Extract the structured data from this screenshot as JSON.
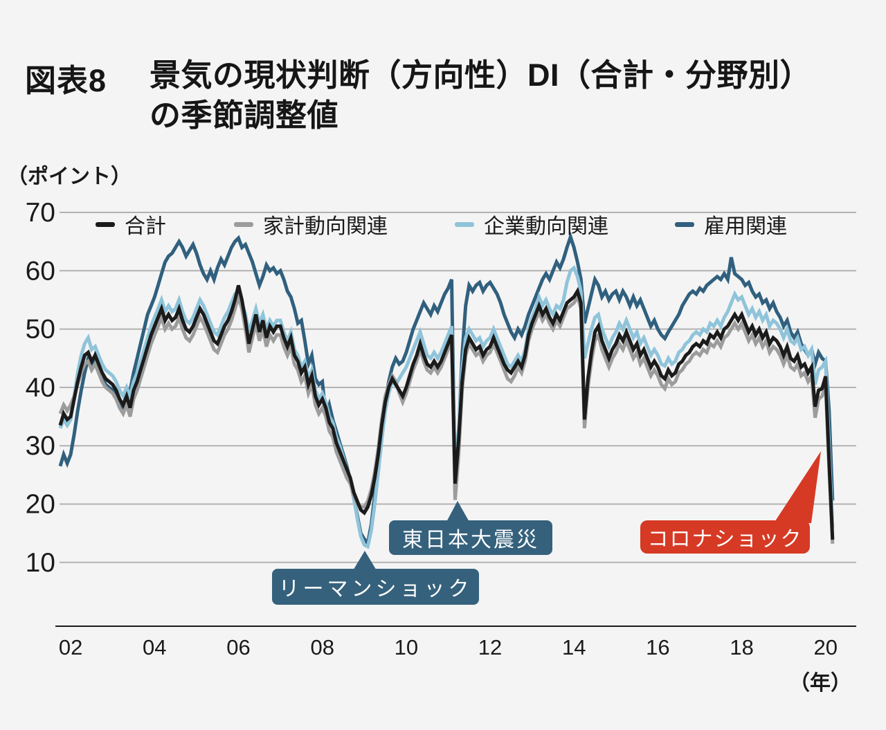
{
  "header": {
    "figure_number": "図表8",
    "title_line1": "景気の現状判断（方向性）DI（合計・分野別）",
    "title_line2": "の季節調整値"
  },
  "axes": {
    "y_unit": "（ポイント）",
    "x_unit": "（年）"
  },
  "chart_data": {
    "type": "line",
    "title": "景気の現状判断（方向性）DI（合計・分野別）の季節調整値",
    "ylabel": "（ポイント）",
    "xlabel": "（年）",
    "frequency": "monthly",
    "x_start": "2001-10",
    "x_end": "2020-03",
    "ylim": [
      0,
      70
    ],
    "grid": true,
    "legend_position": "top",
    "y_ticks": [
      70,
      60,
      50,
      40,
      30,
      20,
      10
    ],
    "x_ticks": [
      "02",
      "04",
      "06",
      "08",
      "10",
      "12",
      "14",
      "16",
      "18",
      "20"
    ],
    "style": {
      "background": "#f4f4f5",
      "grid_color": "#b2b2b2",
      "axis_color": "#1a1a1a",
      "callout_blue": "#35617c",
      "callout_red": "#d63a25"
    },
    "series": [
      {
        "name": "合計",
        "color": "#1b1b1b",
        "values": [
          33.5,
          35.5,
          34.5,
          35.0,
          38.0,
          41.0,
          43.5,
          45.5,
          46.0,
          44.5,
          45.5,
          44.0,
          42.5,
          41.5,
          41.0,
          40.5,
          39.5,
          38.0,
          37.0,
          38.5,
          36.5,
          39.5,
          41.0,
          43.0,
          45.0,
          47.0,
          49.0,
          50.5,
          52.0,
          53.5,
          51.5,
          52.5,
          51.5,
          52.0,
          53.5,
          51.5,
          50.0,
          49.5,
          50.5,
          52.0,
          53.5,
          52.5,
          51.0,
          49.5,
          48.0,
          47.5,
          49.0,
          50.5,
          51.5,
          53.0,
          55.0,
          57.5,
          55.0,
          51.5,
          47.5,
          50.0,
          52.5,
          49.5,
          51.5,
          48.5,
          50.5,
          49.5,
          50.5,
          50.5,
          48.5,
          47.0,
          48.5,
          45.5,
          44.5,
          42.5,
          43.5,
          40.5,
          42.0,
          38.5,
          37.0,
          38.0,
          36.5,
          34.0,
          33.0,
          30.5,
          29.0,
          27.5,
          26.0,
          24.5,
          22.0,
          20.5,
          19.0,
          18.5,
          19.5,
          21.5,
          24.5,
          28.5,
          33.5,
          37.5,
          40.0,
          41.5,
          40.5,
          39.5,
          38.5,
          40.0,
          42.0,
          44.0,
          45.5,
          47.5,
          45.5,
          44.0,
          43.5,
          44.5,
          43.5,
          44.5,
          46.0,
          47.5,
          49.0,
          23.5,
          31.0,
          41.0,
          46.5,
          48.5,
          47.5,
          46.5,
          47.0,
          45.5,
          46.5,
          47.0,
          48.5,
          47.0,
          45.5,
          44.0,
          43.0,
          42.5,
          43.5,
          44.5,
          43.5,
          45.5,
          49.0,
          51.0,
          52.5,
          54.0,
          52.5,
          53.5,
          52.0,
          51.0,
          52.5,
          51.5,
          53.0,
          54.5,
          55.0,
          55.5,
          56.5,
          54.5,
          34.5,
          41.5,
          46.0,
          49.5,
          50.5,
          48.0,
          46.5,
          45.0,
          46.5,
          47.5,
          49.0,
          48.0,
          49.5,
          48.0,
          46.5,
          47.5,
          45.5,
          46.5,
          45.0,
          43.5,
          44.5,
          43.5,
          42.0,
          41.5,
          43.0,
          42.0,
          42.5,
          44.0,
          44.5,
          45.5,
          46.0,
          47.0,
          47.5,
          47.0,
          48.0,
          47.5,
          49.0,
          48.5,
          49.5,
          48.5,
          50.0,
          50.5,
          51.5,
          52.5,
          51.5,
          52.5,
          51.0,
          49.5,
          50.5,
          49.0,
          50.0,
          48.5,
          49.5,
          47.5,
          48.5,
          48.0,
          47.0,
          45.5,
          47.0,
          45.0,
          44.5,
          45.5,
          43.5,
          44.0,
          42.5,
          43.5,
          36.7,
          39.5,
          39.8,
          41.9,
          27.4,
          13.9
        ]
      },
      {
        "name": "家計動向関連",
        "color": "#9c9c9c",
        "values": [
          35.5,
          37.0,
          36.0,
          37.0,
          38.5,
          40.5,
          42.5,
          44.0,
          44.5,
          43.0,
          44.0,
          42.5,
          41.0,
          40.0,
          39.5,
          39.0,
          38.0,
          36.5,
          35.5,
          37.0,
          35.0,
          38.0,
          39.5,
          41.5,
          43.5,
          45.5,
          47.5,
          49.0,
          50.5,
          52.0,
          50.0,
          51.0,
          50.0,
          50.5,
          52.0,
          50.0,
          48.5,
          48.0,
          49.0,
          50.5,
          52.0,
          51.0,
          49.5,
          48.0,
          46.5,
          46.0,
          47.5,
          49.0,
          50.0,
          51.5,
          53.5,
          55.5,
          53.5,
          50.0,
          46.0,
          48.5,
          51.0,
          48.0,
          50.0,
          47.0,
          49.0,
          48.0,
          49.0,
          49.0,
          47.0,
          45.5,
          47.0,
          44.0,
          43.0,
          41.0,
          42.0,
          39.0,
          40.5,
          37.0,
          35.5,
          36.5,
          35.0,
          32.5,
          31.5,
          29.0,
          27.5,
          26.0,
          24.5,
          23.5,
          21.5,
          20.0,
          19.5,
          19.5,
          20.5,
          22.5,
          25.5,
          29.5,
          34.5,
          38.5,
          40.5,
          42.0,
          41.0,
          39.0,
          37.5,
          39.0,
          41.0,
          43.0,
          44.5,
          46.5,
          44.5,
          43.0,
          42.5,
          43.5,
          42.5,
          43.5,
          45.0,
          46.5,
          48.0,
          20.7,
          28.5,
          39.5,
          45.5,
          47.5,
          46.5,
          45.5,
          46.0,
          44.5,
          45.5,
          46.0,
          47.5,
          46.0,
          44.5,
          43.0,
          41.5,
          41.0,
          42.0,
          43.5,
          42.5,
          44.5,
          48.0,
          50.0,
          51.5,
          53.0,
          51.5,
          52.5,
          51.0,
          50.0,
          51.5,
          50.5,
          52.0,
          53.5,
          54.0,
          54.5,
          55.5,
          53.5,
          33.0,
          40.0,
          44.5,
          48.0,
          49.0,
          46.5,
          45.0,
          43.5,
          45.0,
          46.0,
          47.5,
          46.5,
          48.0,
          46.5,
          45.0,
          46.0,
          44.0,
          45.0,
          43.5,
          42.0,
          43.0,
          42.0,
          40.5,
          39.8,
          41.5,
          40.5,
          41.0,
          42.5,
          43.0,
          44.0,
          44.5,
          45.5,
          46.0,
          45.5,
          46.5,
          46.0,
          47.5,
          47.0,
          48.0,
          47.0,
          48.5,
          49.0,
          50.0,
          51.0,
          50.0,
          51.0,
          49.5,
          48.0,
          49.0,
          47.5,
          48.5,
          47.0,
          48.0,
          46.0,
          47.0,
          46.5,
          45.5,
          44.0,
          45.5,
          43.5,
          43.0,
          44.0,
          42.0,
          42.5,
          41.0,
          42.0,
          34.8,
          38.0,
          38.5,
          40.5,
          26.0,
          13.2
        ]
      },
      {
        "name": "企業動向関連",
        "color": "#8fc4da",
        "values": [
          33.0,
          34.5,
          33.5,
          34.5,
          38.5,
          42.5,
          45.5,
          47.5,
          48.5,
          46.5,
          47.0,
          45.5,
          44.0,
          43.0,
          42.5,
          42.0,
          41.0,
          39.5,
          38.5,
          40.0,
          38.5,
          41.0,
          42.5,
          44.5,
          46.5,
          48.5,
          50.5,
          52.0,
          53.5,
          55.0,
          53.0,
          54.0,
          53.0,
          53.5,
          55.0,
          53.0,
          51.5,
          51.0,
          52.0,
          53.5,
          55.0,
          54.0,
          52.5,
          51.0,
          49.5,
          49.0,
          50.5,
          52.0,
          53.0,
          54.5,
          56.0,
          56.5,
          54.5,
          52.5,
          49.5,
          51.5,
          53.5,
          51.0,
          52.5,
          50.0,
          51.5,
          50.5,
          51.5,
          51.5,
          49.5,
          48.0,
          49.5,
          46.5,
          45.5,
          43.5,
          44.5,
          41.5,
          43.0,
          39.5,
          38.0,
          39.0,
          37.5,
          35.0,
          34.0,
          31.5,
          30.0,
          28.0,
          26.0,
          24.0,
          21.0,
          17.5,
          14.5,
          13.0,
          12.7,
          15.5,
          20.0,
          25.5,
          31.0,
          36.0,
          39.0,
          41.0,
          40.5,
          41.5,
          42.5,
          43.5,
          45.0,
          46.5,
          48.0,
          49.5,
          47.5,
          45.5,
          45.0,
          46.0,
          45.0,
          46.0,
          47.5,
          49.0,
          50.5,
          25.5,
          33.0,
          43.0,
          48.5,
          50.0,
          49.0,
          48.0,
          48.5,
          47.0,
          48.0,
          48.5,
          50.0,
          48.5,
          47.0,
          45.5,
          44.0,
          43.5,
          44.5,
          45.5,
          44.5,
          46.5,
          50.0,
          52.0,
          53.5,
          55.5,
          54.0,
          55.0,
          53.5,
          52.5,
          54.0,
          53.5,
          55.0,
          58.0,
          60.0,
          60.5,
          59.0,
          56.5,
          45.0,
          47.5,
          50.0,
          52.0,
          52.5,
          50.0,
          48.5,
          47.0,
          48.5,
          49.5,
          51.0,
          50.0,
          51.5,
          50.0,
          48.5,
          49.5,
          47.5,
          48.5,
          47.0,
          45.5,
          46.5,
          45.5,
          44.0,
          43.7,
          45.0,
          44.0,
          44.5,
          46.0,
          46.5,
          47.5,
          48.0,
          49.0,
          49.5,
          49.0,
          50.0,
          49.5,
          51.0,
          50.5,
          51.5,
          50.5,
          52.0,
          53.0,
          54.5,
          56.0,
          55.0,
          55.5,
          54.0,
          52.5,
          53.5,
          52.0,
          53.0,
          51.5,
          52.5,
          50.5,
          51.5,
          51.0,
          50.0,
          48.5,
          50.0,
          48.0,
          47.5,
          48.5,
          46.5,
          47.0,
          45.5,
          46.5,
          40.5,
          43.0,
          43.5,
          44.5,
          30.0,
          16.0
        ]
      },
      {
        "name": "雇用関連",
        "color": "#30607e",
        "values": [
          26.5,
          28.5,
          27.0,
          28.5,
          32.0,
          36.0,
          39.5,
          42.5,
          45.0,
          43.5,
          45.5,
          44.0,
          42.0,
          40.5,
          40.0,
          39.5,
          38.5,
          37.5,
          36.5,
          38.0,
          39.5,
          42.5,
          45.0,
          47.5,
          50.0,
          52.5,
          54.0,
          55.5,
          57.5,
          59.5,
          61.5,
          62.5,
          63.0,
          64.0,
          65.0,
          64.0,
          62.5,
          63.5,
          64.5,
          63.0,
          61.0,
          59.5,
          58.5,
          60.0,
          58.5,
          60.5,
          62.0,
          61.0,
          62.5,
          64.0,
          65.0,
          65.6,
          64.0,
          64.5,
          63.0,
          61.5,
          59.5,
          57.5,
          59.0,
          61.0,
          60.0,
          60.5,
          59.5,
          60.0,
          58.5,
          56.5,
          55.5,
          53.5,
          51.0,
          51.5,
          48.0,
          44.0,
          45.5,
          41.5,
          40.5,
          41.0,
          35.0,
          37.0,
          34.5,
          32.5,
          30.5,
          28.5,
          26.5,
          24.0,
          21.0,
          18.0,
          15.0,
          14.0,
          13.3,
          16.5,
          21.5,
          27.0,
          32.5,
          37.5,
          41.0,
          43.5,
          45.0,
          44.0,
          44.5,
          46.0,
          48.0,
          50.0,
          51.5,
          53.0,
          54.5,
          53.5,
          52.5,
          54.0,
          53.0,
          54.5,
          56.0,
          57.0,
          58.5,
          21.5,
          32.0,
          45.5,
          54.0,
          57.5,
          56.5,
          57.5,
          58.0,
          56.5,
          57.5,
          58.0,
          57.0,
          56.0,
          54.5,
          52.5,
          51.0,
          49.5,
          48.5,
          50.0,
          49.0,
          50.5,
          52.5,
          54.0,
          55.5,
          57.0,
          58.5,
          59.5,
          58.5,
          60.0,
          61.5,
          60.5,
          62.0,
          64.0,
          65.8,
          64.0,
          61.5,
          58.5,
          51.0,
          53.5,
          56.0,
          58.5,
          57.5,
          55.5,
          56.5,
          55.0,
          56.0,
          56.5,
          55.0,
          56.5,
          55.5,
          54.0,
          55.5,
          54.0,
          55.0,
          53.5,
          52.0,
          50.5,
          51.5,
          50.0,
          49.0,
          48.4,
          49.5,
          50.5,
          51.5,
          52.5,
          54.0,
          55.0,
          56.0,
          56.5,
          56.0,
          57.0,
          56.5,
          57.5,
          58.0,
          58.5,
          59.0,
          58.5,
          59.5,
          58.5,
          62.3,
          59.5,
          59.0,
          58.5,
          57.5,
          58.0,
          56.5,
          55.5,
          56.0,
          54.5,
          55.0,
          53.5,
          54.5,
          53.0,
          52.0,
          50.5,
          51.5,
          49.5,
          48.5,
          49.5,
          47.5,
          46.5,
          45.5,
          46.5,
          44.0,
          46.0,
          45.0,
          44.5,
          36.0,
          20.6
        ]
      }
    ],
    "annotations": [
      {
        "label": "リーマンショック",
        "target": "2009-01 trough"
      },
      {
        "label": "東日本大震災",
        "target": "2011-03 dip"
      },
      {
        "label": "コロナショック",
        "target": "2020-03 plunge"
      }
    ]
  }
}
